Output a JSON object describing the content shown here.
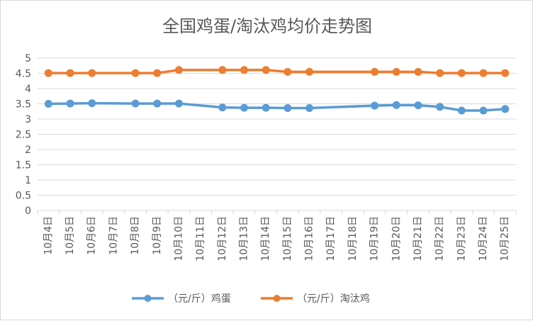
{
  "chart_data": {
    "type": "line",
    "title": "全国鸡蛋/淘汰鸡均价走势图",
    "xlabel": "",
    "ylabel": "",
    "ylim": [
      0,
      5
    ],
    "yticks": [
      "0",
      "0.5",
      "1",
      "1.5",
      "2",
      "2.5",
      "3",
      "3.5",
      "4",
      "4.5",
      "5"
    ],
    "grid": true,
    "legend_position": "bottom",
    "categories": [
      "10月4日",
      "10月5日",
      "10月6日",
      "10月7日",
      "10月8日",
      "10月9日",
      "10月10日",
      "10月11日",
      "10月12日",
      "10月13日",
      "10月14日",
      "10月15日",
      "10月16日",
      "10月17日",
      "10月18日",
      "10月19日",
      "10月20日",
      "10月21日",
      "10月22日",
      "10月23日",
      "10月24日",
      "10月25日"
    ],
    "series": [
      {
        "name": "（元/斤）鸡蛋",
        "color": "#5b9bd5",
        "values": [
          3.5,
          3.51,
          3.52,
          null,
          3.51,
          3.51,
          3.51,
          null,
          3.38,
          3.37,
          3.37,
          3.36,
          3.36,
          null,
          null,
          3.44,
          3.46,
          3.45,
          3.4,
          3.28,
          3.28,
          3.33
        ]
      },
      {
        "name": "（元/斤）淘汰鸡",
        "color": "#ed7d31",
        "values": [
          4.51,
          4.51,
          4.51,
          null,
          4.51,
          4.51,
          4.61,
          null,
          4.61,
          4.61,
          4.61,
          4.55,
          4.55,
          null,
          null,
          4.55,
          4.55,
          4.55,
          4.51,
          4.51,
          4.51,
          4.51
        ]
      }
    ]
  }
}
